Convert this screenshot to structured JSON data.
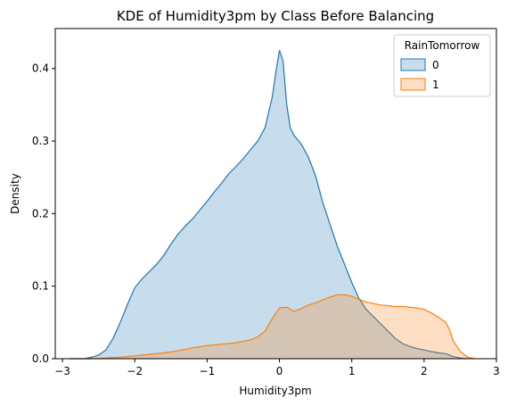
{
  "chart_data": {
    "type": "area",
    "title": "KDE of Humidity3pm by Class Before Balancing",
    "xlabel": "Humidity3pm",
    "ylabel": "Density",
    "xlim": [
      -3.1,
      3.0
    ],
    "ylim": [
      0,
      0.455
    ],
    "xticks": [
      -3,
      -2,
      -1,
      0,
      1,
      2,
      3
    ],
    "yticks": [
      0.0,
      0.1,
      0.2,
      0.3,
      0.4
    ],
    "ytick_labels": [
      "0.0",
      "0.1",
      "0.2",
      "0.3",
      "0.4"
    ],
    "grid": false,
    "legend": {
      "title": "RainTomorrow",
      "placement": "top-right"
    },
    "series": [
      {
        "name": "0",
        "color": "#1f77b4",
        "x": [
          -2.9,
          -2.7,
          -2.6,
          -2.5,
          -2.4,
          -2.3,
          -2.2,
          -2.1,
          -2.0,
          -1.9,
          -1.8,
          -1.7,
          -1.6,
          -1.5,
          -1.4,
          -1.3,
          -1.2,
          -1.1,
          -1.0,
          -0.9,
          -0.8,
          -0.7,
          -0.6,
          -0.5,
          -0.4,
          -0.3,
          -0.2,
          -0.1,
          -0.05,
          0.0,
          0.05,
          0.1,
          0.15,
          0.2,
          0.3,
          0.4,
          0.5,
          0.6,
          0.7,
          0.8,
          0.9,
          1.0,
          1.1,
          1.2,
          1.3,
          1.4,
          1.5,
          1.6,
          1.7,
          1.8,
          1.9,
          2.0,
          2.1,
          2.2,
          2.3,
          2.4,
          2.5,
          2.6
        ],
        "y": [
          0.0,
          0.0,
          0.002,
          0.005,
          0.012,
          0.028,
          0.05,
          0.075,
          0.098,
          0.11,
          0.12,
          0.13,
          0.142,
          0.158,
          0.172,
          0.183,
          0.193,
          0.205,
          0.217,
          0.23,
          0.242,
          0.255,
          0.265,
          0.276,
          0.288,
          0.3,
          0.318,
          0.36,
          0.395,
          0.425,
          0.41,
          0.35,
          0.318,
          0.308,
          0.296,
          0.278,
          0.252,
          0.215,
          0.185,
          0.155,
          0.13,
          0.105,
          0.083,
          0.068,
          0.058,
          0.048,
          0.038,
          0.028,
          0.021,
          0.017,
          0.014,
          0.012,
          0.01,
          0.008,
          0.007,
          0.003,
          0.001,
          0.0
        ]
      },
      {
        "name": "1",
        "color": "#ff7f0e",
        "x": [
          -2.9,
          -2.6,
          -2.4,
          -2.2,
          -2.0,
          -1.8,
          -1.6,
          -1.4,
          -1.2,
          -1.0,
          -0.8,
          -0.6,
          -0.4,
          -0.3,
          -0.2,
          -0.1,
          0.0,
          0.1,
          0.2,
          0.3,
          0.4,
          0.5,
          0.6,
          0.7,
          0.8,
          0.9,
          1.0,
          1.1,
          1.2,
          1.3,
          1.4,
          1.5,
          1.6,
          1.7,
          1.8,
          1.9,
          2.0,
          2.1,
          2.2,
          2.3,
          2.35,
          2.4,
          2.5,
          2.6,
          2.7
        ],
        "y": [
          0.0,
          0.0,
          0.001,
          0.002,
          0.004,
          0.006,
          0.008,
          0.011,
          0.015,
          0.018,
          0.02,
          0.022,
          0.026,
          0.03,
          0.038,
          0.055,
          0.07,
          0.071,
          0.065,
          0.069,
          0.074,
          0.077,
          0.081,
          0.085,
          0.088,
          0.088,
          0.086,
          0.082,
          0.078,
          0.076,
          0.074,
          0.073,
          0.072,
          0.072,
          0.071,
          0.07,
          0.068,
          0.063,
          0.057,
          0.05,
          0.04,
          0.025,
          0.01,
          0.002,
          0.0
        ]
      }
    ]
  }
}
